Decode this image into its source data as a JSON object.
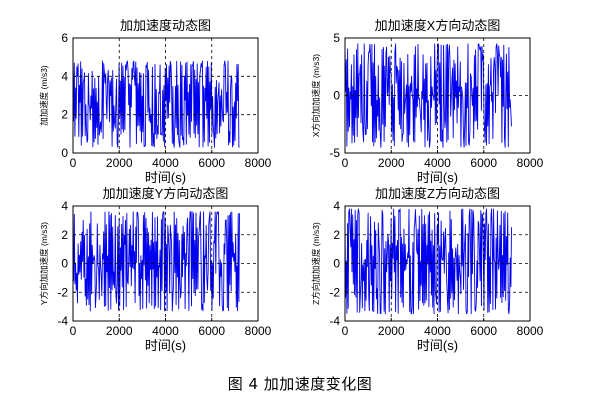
{
  "figure": {
    "caption": "图 4  加加速度变化图"
  },
  "colors": {
    "trace": "#0000ee",
    "axes": "#000000",
    "grid": "#000000",
    "background": "#ffffff"
  },
  "chart_data": [
    {
      "type": "line",
      "title": "加加速度动态图",
      "xlabel": "时间(s)",
      "ylabel": "加加速度 (m/s3)",
      "xlim": [
        0,
        8000
      ],
      "ylim": [
        0,
        6
      ],
      "xticks": [
        0,
        2000,
        4000,
        6000,
        8000
      ],
      "yticks": [
        0,
        2,
        4,
        6
      ],
      "grid": true,
      "series": [
        {
          "x_range": [
            0,
            7200
          ],
          "value_range": [
            0.3,
            4.8
          ]
        }
      ]
    },
    {
      "type": "line",
      "title": "加加速度X方向动态图",
      "xlabel": "时间(s)",
      "ylabel": "X方向加加速度 (m/s3)",
      "xlim": [
        0,
        8000
      ],
      "ylim": [
        -5,
        5
      ],
      "xticks": [
        0,
        2000,
        4000,
        6000,
        8000
      ],
      "yticks": [
        -5,
        0,
        5
      ],
      "grid": true,
      "series": [
        {
          "x_range": [
            0,
            7200
          ],
          "value_range": [
            -4.5,
            4.5
          ]
        }
      ]
    },
    {
      "type": "line",
      "title": "加加速度Y方向动态图",
      "xlabel": "时间(s)",
      "ylabel": "Y方向加加速度 (m/s3)",
      "xlim": [
        0,
        8000
      ],
      "ylim": [
        -4,
        4
      ],
      "xticks": [
        0,
        2000,
        4000,
        6000,
        8000
      ],
      "yticks": [
        -4,
        -2,
        0,
        2,
        4
      ],
      "grid": true,
      "series": [
        {
          "x_range": [
            0,
            7200
          ],
          "value_range": [
            -3.3,
            3.6
          ]
        }
      ]
    },
    {
      "type": "line",
      "title": "加加速度Z方向动态图",
      "xlabel": "时间(s)",
      "ylabel": "Z方向加加速度 (m/s3)",
      "xlim": [
        0,
        8000
      ],
      "ylim": [
        -4,
        4
      ],
      "xticks": [
        0,
        2000,
        4000,
        6000,
        8000
      ],
      "yticks": [
        -4,
        -2,
        0,
        2,
        4
      ],
      "grid": true,
      "series": [
        {
          "x_range": [
            0,
            7200
          ],
          "value_range": [
            -3.5,
            3.8
          ]
        }
      ]
    }
  ]
}
